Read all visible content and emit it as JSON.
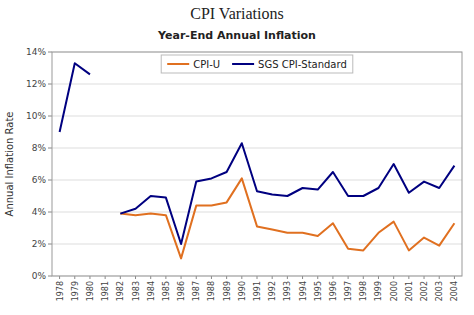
{
  "chart_data": {
    "type": "line",
    "title": "CPI Variations",
    "subtitle": "Year-End Annual Inflation",
    "ylabel": "Annual Inflation Rate",
    "x": [
      1978,
      1979,
      1980,
      1981,
      1982,
      1983,
      1984,
      1985,
      1986,
      1987,
      1988,
      1989,
      1990,
      1991,
      1992,
      1993,
      1994,
      1995,
      1996,
      1997,
      1998,
      1999,
      2000,
      2001,
      2002,
      2003,
      2004
    ],
    "series": [
      {
        "name": "CPI-U",
        "color": "#E07020",
        "values": [
          null,
          null,
          null,
          null,
          3.9,
          3.8,
          3.9,
          3.8,
          1.1,
          4.4,
          4.4,
          4.6,
          6.1,
          3.1,
          2.9,
          2.7,
          2.7,
          2.5,
          3.3,
          1.7,
          1.6,
          2.7,
          3.4,
          1.6,
          2.4,
          1.9,
          3.3
        ]
      },
      {
        "name": "SGS CPI-Standard",
        "color": "#000080",
        "values": [
          9.0,
          13.3,
          12.6,
          null,
          3.9,
          4.2,
          5.0,
          4.9,
          2.0,
          5.9,
          6.1,
          6.5,
          8.3,
          5.3,
          5.1,
          5.0,
          5.5,
          5.4,
          6.5,
          5.0,
          5.0,
          5.5,
          7.0,
          5.2,
          5.9,
          5.5,
          6.9
        ]
      }
    ],
    "xlim": [
      1977.5,
      2004.5
    ],
    "xticks": [
      1978,
      1979,
      1980,
      1981,
      1982,
      1983,
      1984,
      1985,
      1986,
      1987,
      1988,
      1989,
      1990,
      1991,
      1992,
      1993,
      1994,
      1995,
      1996,
      1997,
      1998,
      1999,
      2000,
      2001,
      2002,
      2003,
      2004
    ],
    "ylim": [
      0,
      14
    ],
    "yticks": [
      {
        "value": 0,
        "label": "0%"
      },
      {
        "value": 2,
        "label": "2%"
      },
      {
        "value": 4,
        "label": "4%"
      },
      {
        "value": 6,
        "label": "6%"
      },
      {
        "value": 8,
        "label": "8%"
      },
      {
        "value": 10,
        "label": "10%"
      },
      {
        "value": 12,
        "label": "12%"
      },
      {
        "value": 14,
        "label": "14%"
      }
    ],
    "grid": true,
    "legend": "top"
  }
}
